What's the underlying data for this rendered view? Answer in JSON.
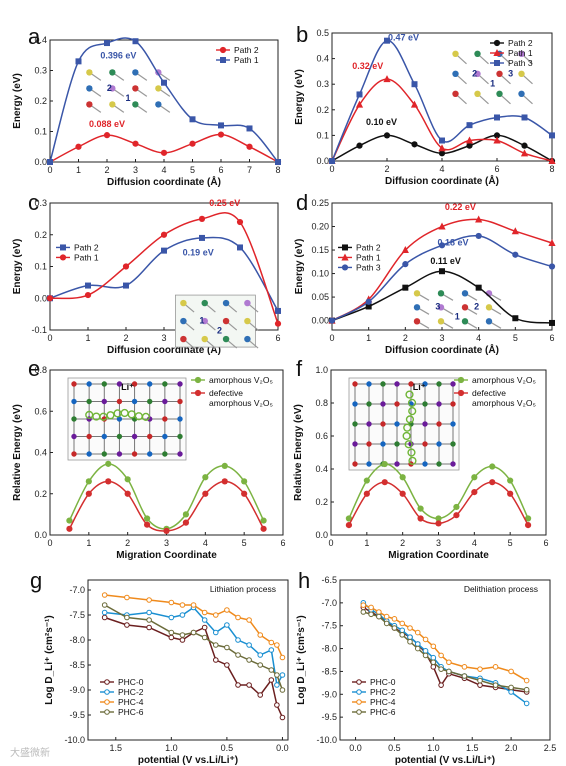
{
  "watermark": "大盛微新",
  "chart_data": [
    {
      "panel": "a",
      "type": "line",
      "xlabel": "Diffusion coordinate (Å)",
      "ylabel": "Energy (eV)",
      "xlim": [
        0,
        8
      ],
      "ylim": [
        0,
        0.4
      ],
      "xticks": [
        "0",
        "1",
        "2",
        "3",
        "4",
        "5",
        "6",
        "7",
        "8"
      ],
      "yticks": [
        "0.0",
        "0.1",
        "0.2",
        "0.3",
        "0.4"
      ],
      "legend": "top-right",
      "series": [
        {
          "name": "Path 2",
          "color": "#e0252a",
          "marker": "circle",
          "x": [
            0,
            1,
            2,
            3,
            4,
            5,
            6,
            7,
            8
          ],
          "y": [
            0,
            0.05,
            0.088,
            0.06,
            0.03,
            0.06,
            0.09,
            0.05,
            0
          ]
        },
        {
          "name": "Path 1",
          "color": "#3a56a8",
          "marker": "square",
          "x": [
            0,
            1,
            2,
            3,
            4,
            5,
            6,
            7,
            8
          ],
          "y": [
            0,
            0.33,
            0.39,
            0.396,
            0.26,
            0.14,
            0.12,
            0.11,
            0
          ]
        }
      ],
      "annotations": [
        {
          "text": "0.396 eV",
          "x": 2.4,
          "y": 0.34,
          "color": "#3a56a8"
        },
        {
          "text": "0.088 eV",
          "x": 2.0,
          "y": 0.115,
          "color": "#e0252a"
        }
      ],
      "inset_labels": [
        "2",
        "1"
      ]
    },
    {
      "panel": "b",
      "type": "line",
      "xlabel": "Diffusion coordinate (Å)",
      "ylabel": "Energy (eV)",
      "xlim": [
        0,
        8
      ],
      "ylim": [
        0,
        0.5
      ],
      "xticks": [
        "0",
        "2",
        "4",
        "6",
        "8"
      ],
      "yticks": [
        "0.0",
        "0.1",
        "0.2",
        "0.3",
        "0.4",
        "0.5"
      ],
      "legend": "top-right",
      "series": [
        {
          "name": "Path 2",
          "color": "#111111",
          "marker": "circle",
          "x": [
            0,
            1,
            2,
            3,
            4,
            5,
            6,
            7,
            8
          ],
          "y": [
            0,
            0.06,
            0.1,
            0.065,
            0.03,
            0.06,
            0.1,
            0.06,
            0
          ]
        },
        {
          "name": "Path 1",
          "color": "#e0252a",
          "marker": "triangle",
          "x": [
            0,
            1,
            2,
            3,
            4,
            5,
            6,
            7,
            8
          ],
          "y": [
            0,
            0.22,
            0.32,
            0.22,
            0.05,
            0.08,
            0.08,
            0.03,
            0
          ]
        },
        {
          "name": "Path 3",
          "color": "#3a56a8",
          "marker": "square",
          "x": [
            0,
            1,
            2,
            3,
            4,
            5,
            6,
            7,
            8
          ],
          "y": [
            0,
            0.26,
            0.47,
            0.3,
            0.08,
            0.14,
            0.17,
            0.17,
            0.1
          ]
        }
      ],
      "annotations": [
        {
          "text": "0.47 eV",
          "x": 2.6,
          "y": 0.47,
          "color": "#3a56a8"
        },
        {
          "text": "0.32 eV",
          "x": 1.3,
          "y": 0.36,
          "color": "#e0252a"
        },
        {
          "text": "0.10 eV",
          "x": 1.8,
          "y": 0.14,
          "color": "#111111"
        }
      ],
      "inset_labels": [
        "2",
        "1",
        "3"
      ]
    },
    {
      "panel": "c",
      "type": "line",
      "xlabel": "Diffusion coordinate (Å)",
      "ylabel": "Energy (eV)",
      "xlim": [
        0,
        6
      ],
      "ylim": [
        -0.1,
        0.3
      ],
      "xticks": [
        "0",
        "1",
        "2",
        "3",
        "4",
        "5",
        "6"
      ],
      "yticks": [
        "-0.1",
        "0.0",
        "0.1",
        "0.2",
        "0.3"
      ],
      "legend": "middle-left",
      "series": [
        {
          "name": "Path 2",
          "color": "#3a56a8",
          "marker": "square",
          "x": [
            0,
            1,
            2,
            3,
            4,
            5,
            6
          ],
          "y": [
            0,
            0.04,
            0.04,
            0.15,
            0.19,
            0.16,
            -0.04
          ]
        },
        {
          "name": "Path 1",
          "color": "#e0252a",
          "marker": "circle",
          "x": [
            0,
            1,
            2,
            3,
            4,
            5,
            6
          ],
          "y": [
            0,
            0.01,
            0.1,
            0.2,
            0.25,
            0.24,
            -0.08
          ]
        }
      ],
      "annotations": [
        {
          "text": "0.25 eV",
          "x": 4.6,
          "y": 0.29,
          "color": "#e0252a"
        },
        {
          "text": "0.19 eV",
          "x": 3.9,
          "y": 0.135,
          "color": "#3a56a8"
        }
      ],
      "inset_labels": [
        "1",
        "2"
      ]
    },
    {
      "panel": "d",
      "type": "line",
      "xlabel": "Diffusion coordinate (Å)",
      "ylabel": "Energy (eV)",
      "xlim": [
        0,
        6
      ],
      "ylim": [
        -0.02,
        0.25
      ],
      "xticks": [
        "0",
        "1",
        "2",
        "3",
        "4",
        "5",
        "6"
      ],
      "yticks": [
        "0.00",
        "0.05",
        "0.10",
        "0.15",
        "0.20",
        "0.25"
      ],
      "legend": "middle-left",
      "series": [
        {
          "name": "Path 2",
          "color": "#111111",
          "marker": "square",
          "x": [
            0,
            1,
            2,
            3,
            4,
            5,
            6
          ],
          "y": [
            0,
            0.03,
            0.07,
            0.105,
            0.07,
            0.005,
            -0.005
          ]
        },
        {
          "name": "Path 1",
          "color": "#e0252a",
          "marker": "triangle",
          "x": [
            0,
            1,
            2,
            3,
            4,
            5,
            6
          ],
          "y": [
            0,
            0.045,
            0.15,
            0.2,
            0.215,
            0.19,
            0.165
          ]
        },
        {
          "name": "Path 3",
          "color": "#3a56a8",
          "marker": "circle",
          "x": [
            0,
            1,
            2,
            3,
            4,
            5,
            6
          ],
          "y": [
            0,
            0.04,
            0.12,
            0.16,
            0.18,
            0.14,
            0.115
          ]
        }
      ],
      "annotations": [
        {
          "text": "0.22 eV",
          "x": 3.5,
          "y": 0.235,
          "color": "#e0252a"
        },
        {
          "text": "0.18 eV",
          "x": 3.3,
          "y": 0.16,
          "color": "#3a56a8"
        },
        {
          "text": "0.11 eV",
          "x": 3.1,
          "y": 0.12,
          "color": "#111111"
        }
      ],
      "inset_labels": [
        "3",
        "1",
        "2"
      ]
    },
    {
      "panel": "e",
      "type": "line",
      "xlabel": "Migration Coordinate",
      "ylabel": "Relative Energy (eV)",
      "xlim": [
        0,
        6
      ],
      "ylim": [
        0,
        0.8
      ],
      "xticks": [
        "0",
        "1",
        "2",
        "3",
        "4",
        "5",
        "6"
      ],
      "yticks": [
        "0.0",
        "0.2",
        "0.4",
        "0.6",
        "0.8"
      ],
      "legend": "top-right",
      "series": [
        {
          "name": "amorphous V₂O₅",
          "color": "#7cb342",
          "marker": "circle",
          "x": [
            0.5,
            1,
            1.5,
            2,
            2.5,
            3,
            3.5,
            4,
            4.5,
            5,
            5.5
          ],
          "y": [
            0.07,
            0.26,
            0.345,
            0.27,
            0.08,
            0.03,
            0.1,
            0.28,
            0.335,
            0.26,
            0.07
          ]
        },
        {
          "name": "defective amorphous V₂O₅",
          "color": "#d32f2f",
          "marker": "circle",
          "x": [
            0.5,
            1,
            1.5,
            2,
            2.5,
            3,
            3.5,
            4,
            4.5,
            5,
            5.5
          ],
          "y": [
            0.03,
            0.2,
            0.26,
            0.2,
            0.05,
            0.02,
            0.06,
            0.2,
            0.26,
            0.2,
            0.03
          ]
        }
      ],
      "inset_labels": [
        "Li⁺"
      ]
    },
    {
      "panel": "f",
      "type": "line",
      "xlabel": "Migration Coordinate",
      "ylabel": "Relative Energy (eV)",
      "xlim": [
        0,
        6
      ],
      "ylim": [
        0,
        1.0
      ],
      "xticks": [
        "0",
        "1",
        "2",
        "3",
        "4",
        "5",
        "6"
      ],
      "yticks": [
        "0.0",
        "0.2",
        "0.4",
        "0.6",
        "0.8",
        "1.0"
      ],
      "legend": "top-right",
      "series": [
        {
          "name": "amorphous V₂O₅",
          "color": "#7cb342",
          "marker": "circle",
          "x": [
            0.5,
            1,
            1.5,
            2,
            2.5,
            3,
            3.5,
            4,
            4.5,
            5,
            5.5
          ],
          "y": [
            0.1,
            0.33,
            0.43,
            0.35,
            0.16,
            0.1,
            0.17,
            0.35,
            0.415,
            0.33,
            0.1
          ]
        },
        {
          "name": "defective amorphous V₂O₅",
          "color": "#d32f2f",
          "marker": "circle",
          "x": [
            0.5,
            1,
            1.5,
            2,
            2.5,
            3,
            3.5,
            4,
            4.5,
            5,
            5.5
          ],
          "y": [
            0.06,
            0.25,
            0.32,
            0.25,
            0.1,
            0.07,
            0.12,
            0.26,
            0.32,
            0.25,
            0.06
          ]
        }
      ],
      "inset_labels": [
        "Li⁺"
      ]
    },
    {
      "panel": "g",
      "type": "line",
      "title": "Lithiation process",
      "xlabel": "potential (V vs.Li/Li⁺)",
      "ylabel": "Log D_Li⁺ (cm²s⁻¹)",
      "xlim": [
        1.75,
        -0.05
      ],
      "ylim": [
        -10.0,
        -6.8
      ],
      "xticks": [
        "1.5",
        "1.0",
        "0.5",
        "0.0"
      ],
      "xtick_values": [
        1.5,
        1.0,
        0.5,
        0.0
      ],
      "yticks": [
        "-10.0",
        "-9.5",
        "-9.0",
        "-8.5",
        "-8.0",
        "-7.5",
        "-7.0"
      ],
      "legend": "lower-left",
      "series": [
        {
          "name": "PHC-0",
          "color": "#6b1f1f",
          "marker": "circle",
          "x": [
            1.6,
            1.4,
            1.2,
            1.0,
            0.9,
            0.8,
            0.7,
            0.6,
            0.5,
            0.4,
            0.3,
            0.2,
            0.1,
            0.05,
            0.0
          ],
          "y": [
            -7.55,
            -7.7,
            -7.75,
            -7.95,
            -8.0,
            -7.85,
            -7.75,
            -8.4,
            -8.5,
            -8.9,
            -8.9,
            -9.1,
            -8.8,
            -9.3,
            -9.55
          ]
        },
        {
          "name": "PHC-2",
          "color": "#1a8fd1",
          "marker": "circle",
          "x": [
            1.6,
            1.4,
            1.2,
            1.0,
            0.9,
            0.8,
            0.7,
            0.6,
            0.5,
            0.4,
            0.3,
            0.2,
            0.1,
            0.05,
            0.0
          ],
          "y": [
            -7.45,
            -7.5,
            -7.45,
            -7.55,
            -7.5,
            -7.35,
            -7.6,
            -7.85,
            -7.7,
            -8.0,
            -8.1,
            -8.3,
            -8.2,
            -8.9,
            -8.7
          ]
        },
        {
          "name": "PHC-4",
          "color": "#ef8a1c",
          "marker": "circle",
          "x": [
            1.6,
            1.4,
            1.2,
            1.0,
            0.9,
            0.8,
            0.7,
            0.6,
            0.5,
            0.4,
            0.3,
            0.2,
            0.1,
            0.05,
            0.0
          ],
          "y": [
            -7.1,
            -7.15,
            -7.2,
            -7.25,
            -7.3,
            -7.3,
            -7.45,
            -7.5,
            -7.4,
            -7.55,
            -7.6,
            -7.9,
            -8.05,
            -8.1,
            -8.35
          ]
        },
        {
          "name": "PHC-6",
          "color": "#6b6b3a",
          "marker": "circle",
          "x": [
            1.6,
            1.4,
            1.2,
            1.0,
            0.9,
            0.8,
            0.7,
            0.6,
            0.5,
            0.4,
            0.3,
            0.2,
            0.1,
            0.05,
            0.0
          ],
          "y": [
            -7.3,
            -7.55,
            -7.6,
            -7.85,
            -7.9,
            -7.85,
            -7.95,
            -8.1,
            -8.15,
            -8.3,
            -8.4,
            -8.5,
            -8.6,
            -8.7,
            -9.0
          ]
        }
      ]
    },
    {
      "panel": "h",
      "type": "line",
      "title": "Delithiation process",
      "xlabel": "potential (V vs.Li/Li⁺)",
      "ylabel": "Log D_Li⁺ (cm²s⁻¹)",
      "xlim": [
        -0.2,
        2.5
      ],
      "ylim": [
        -10.0,
        -6.5
      ],
      "xticks": [
        "0.0",
        "0.5",
        "1.0",
        "1.5",
        "2.0",
        "2.5"
      ],
      "yticks": [
        "-10.0",
        "-9.5",
        "-9.0",
        "-8.5",
        "-8.0",
        "-7.5",
        "-7.0",
        "-6.5"
      ],
      "legend": "lower-left",
      "series": [
        {
          "name": "PHC-0",
          "color": "#6b1f1f",
          "marker": "circle",
          "x": [
            0.1,
            0.2,
            0.3,
            0.4,
            0.5,
            0.6,
            0.7,
            0.8,
            0.9,
            1.0,
            1.1,
            1.2,
            1.4,
            1.6,
            1.8,
            2.0,
            2.2
          ],
          "y": [
            -7.1,
            -7.2,
            -7.3,
            -7.4,
            -7.55,
            -7.65,
            -7.75,
            -7.9,
            -8.1,
            -8.4,
            -8.8,
            -8.55,
            -8.65,
            -8.8,
            -8.85,
            -8.9,
            -8.95
          ]
        },
        {
          "name": "PHC-2",
          "color": "#1a8fd1",
          "marker": "circle",
          "x": [
            0.1,
            0.2,
            0.3,
            0.4,
            0.5,
            0.6,
            0.7,
            0.8,
            0.9,
            1.0,
            1.1,
            1.2,
            1.4,
            1.6,
            1.8,
            2.0,
            2.2
          ],
          "y": [
            -7.0,
            -7.15,
            -7.25,
            -7.4,
            -7.5,
            -7.6,
            -7.75,
            -7.9,
            -8.05,
            -8.2,
            -8.4,
            -8.5,
            -8.6,
            -8.65,
            -8.75,
            -8.95,
            -9.2
          ]
        },
        {
          "name": "PHC-4",
          "color": "#ef8a1c",
          "marker": "circle",
          "x": [
            0.1,
            0.2,
            0.3,
            0.4,
            0.5,
            0.6,
            0.7,
            0.8,
            0.9,
            1.0,
            1.1,
            1.2,
            1.4,
            1.6,
            1.8,
            2.0,
            2.2
          ],
          "y": [
            -7.05,
            -7.1,
            -7.2,
            -7.3,
            -7.35,
            -7.45,
            -7.55,
            -7.65,
            -7.8,
            -7.95,
            -8.15,
            -8.3,
            -8.4,
            -8.45,
            -8.4,
            -8.5,
            -8.7
          ]
        },
        {
          "name": "PHC-6",
          "color": "#6b6b3a",
          "marker": "circle",
          "x": [
            0.1,
            0.2,
            0.3,
            0.4,
            0.5,
            0.6,
            0.7,
            0.8,
            0.9,
            1.0,
            1.1,
            1.2,
            1.4,
            1.6,
            1.8,
            2.0,
            2.2
          ],
          "y": [
            -7.2,
            -7.25,
            -7.3,
            -7.45,
            -7.55,
            -7.7,
            -7.85,
            -8.0,
            -8.15,
            -8.3,
            -8.45,
            -8.5,
            -8.6,
            -8.7,
            -8.8,
            -8.85,
            -8.9
          ]
        }
      ]
    }
  ]
}
